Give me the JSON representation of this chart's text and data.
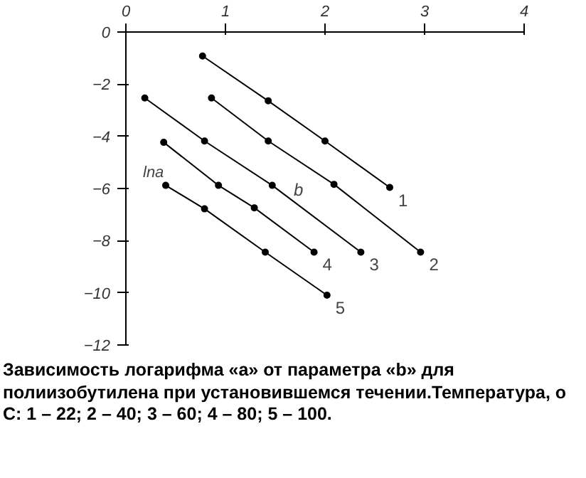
{
  "chart_data": {
    "type": "line",
    "title": "Зависимость логарифма «a»  от параметра  «b»  для  полиизобутилена при установившемся течении.Температура, o C: 1 – 22; 2 – 40; 3 – 60; 4 – 80;  5 – 100.",
    "ylabel": "lna",
    "xlabel": "b",
    "series": [
      {
        "name": "1",
        "color": "#000000",
        "x": [
          0.77,
          1.43,
          2.0,
          2.65
        ],
        "values": [
          -0.92,
          -2.64,
          -4.18,
          -5.96
        ]
      },
      {
        "name": "2",
        "color": "#000000",
        "x": [
          0.86,
          1.43,
          2.09,
          2.96
        ],
        "values": [
          -2.53,
          -4.18,
          -5.84,
          -8.44
        ]
      },
      {
        "name": "3",
        "color": "#000000",
        "x": [
          0.19,
          0.79,
          1.47,
          2.36
        ],
        "values": [
          -2.53,
          -4.18,
          -5.88,
          -8.44
        ]
      },
      {
        "name": "4",
        "color": "#000000",
        "x": [
          0.38,
          0.93,
          1.29,
          1.89
        ],
        "values": [
          -4.23,
          -5.88,
          -6.74,
          -8.44
        ]
      },
      {
        "name": "5",
        "color": "#000000",
        "x": [
          0.4,
          0.79,
          1.4,
          2.02
        ],
        "values": [
          -5.88,
          -6.78,
          -8.44,
          -10.09
        ]
      }
    ],
    "xlim": [
      0,
      4
    ],
    "xticks": [
      0,
      1,
      2,
      3,
      4
    ],
    "ylim": [
      -12,
      0
    ],
    "yticks": [
      -12,
      -10,
      -8,
      -6,
      -4,
      -2,
      0
    ],
    "grid": false,
    "marker": "circle",
    "line_style": "solid"
  }
}
